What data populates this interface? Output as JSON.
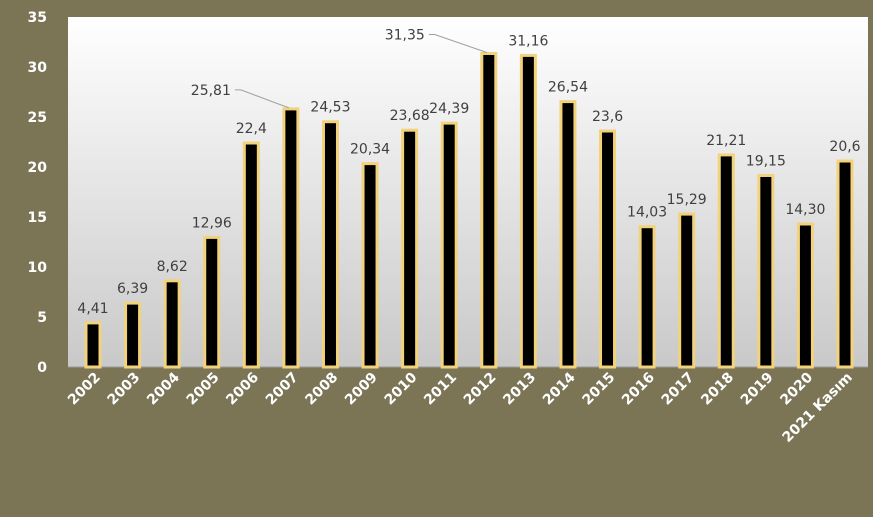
{
  "chart_data": {
    "type": "bar",
    "categories": [
      "2002",
      "2003",
      "2004",
      "2005",
      "2006",
      "2007",
      "2008",
      "2009",
      "2010",
      "2011",
      "2012",
      "2013",
      "2014",
      "2015",
      "2016",
      "2017",
      "2018",
      "2019",
      "2020",
      "2021 Kasım"
    ],
    "values": [
      4.41,
      6.39,
      8.62,
      12.96,
      22.4,
      25.81,
      24.53,
      20.34,
      23.68,
      24.39,
      31.35,
      31.16,
      26.54,
      23.6,
      14.03,
      15.29,
      21.21,
      19.15,
      14.3,
      20.6
    ],
    "data_labels": [
      "4,41",
      "6,39",
      "8,62",
      "12,96",
      "22,4",
      "25,81",
      "24,53",
      "20,34",
      "23,68",
      "24,39",
      "31,35",
      "31,16",
      "26,54",
      "23,6",
      "14,03",
      "15,29",
      "21,21",
      "19,15",
      "14,30",
      "20,6"
    ],
    "y_ticks": [
      "0",
      "5",
      "10",
      "15",
      "20",
      "25",
      "30",
      "35"
    ],
    "ylim": [
      0,
      35
    ],
    "title": "",
    "xlabel": "",
    "ylabel": "",
    "grid": false,
    "legend": "none",
    "colors": {
      "frame": "#7b7556",
      "plot_gradient_top": "#ffffff",
      "plot_gradient_bottom": "#c9c9c9",
      "bar_fill": "#000000",
      "bar_border": "#f2d27a",
      "axis_text": "#ffffff",
      "label_text": "#404040"
    }
  }
}
